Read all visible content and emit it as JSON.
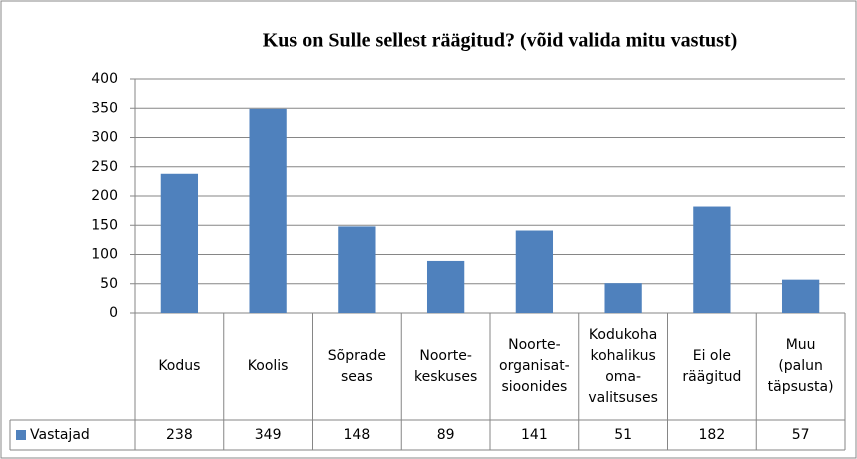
{
  "chart_data": {
    "type": "bar",
    "title": "Kus on Sulle sellest räägitud? (võid valida mitu vastust)",
    "categories": [
      "Kodus",
      "Koolis",
      "Sõprade\nseas",
      "Noorte-\nkeskuses",
      "Noorte-\norganisat-\nsioonides",
      "Kodukoha\nkohalikus\noma-\nvalitsuses",
      "Ei ole\nräägitud",
      "Muu\n(palun\ntäpsusta)"
    ],
    "series": [
      {
        "name": "Vastajad",
        "color": "#4f81bd",
        "values": [
          238,
          349,
          148,
          89,
          141,
          51,
          182,
          57
        ]
      }
    ],
    "ylim": [
      0,
      400
    ],
    "yticks": [
      0,
      50,
      100,
      150,
      200,
      250,
      300,
      350,
      400
    ],
    "grid": true
  }
}
